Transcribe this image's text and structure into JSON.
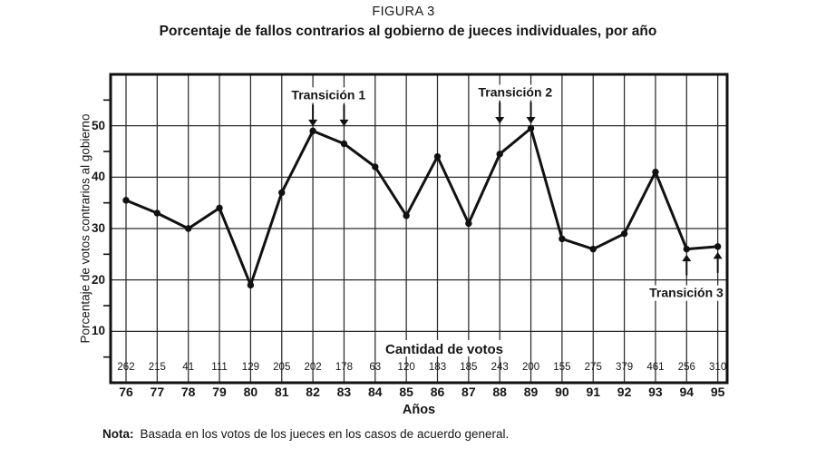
{
  "chart_data": {
    "type": "line",
    "title": "FIGURA 3",
    "subtitle": "Porcentaje de fallos contrarios al gobierno de jueces individuales, por año",
    "ylabel": "Porcentaje de votos contrarios al gobierno",
    "xlabel": "Años",
    "ylim": [
      0,
      60
    ],
    "yticks": [
      10,
      20,
      30,
      40,
      50
    ],
    "minor_yticks": [
      5,
      15,
      25,
      35,
      45,
      55
    ],
    "grid": true,
    "legend_position": "none",
    "categories": [
      "76",
      "77",
      "78",
      "79",
      "80",
      "81",
      "82",
      "83",
      "84",
      "85",
      "86",
      "87",
      "88",
      "89",
      "90",
      "91",
      "92",
      "93",
      "94",
      "95"
    ],
    "series": [
      {
        "name": "Porcentaje de votos contrarios al gobierno",
        "values": [
          35.5,
          33,
          30,
          34,
          19,
          37,
          49,
          46.5,
          42,
          32.5,
          44,
          31,
          44.5,
          49.5,
          28,
          26,
          29,
          41,
          26,
          26.5
        ]
      }
    ],
    "vote_counts": [
      262,
      215,
      41,
      111,
      129,
      205,
      202,
      178,
      63,
      120,
      183,
      185,
      243,
      200,
      155,
      275,
      379,
      461,
      256,
      310
    ],
    "counts_label": "Cantidad de votos",
    "annotations": [
      {
        "label": "Transición 1",
        "targets": [
          "82",
          "83"
        ],
        "direction": "down"
      },
      {
        "label": "Transición 2",
        "targets": [
          "88",
          "89"
        ],
        "direction": "down"
      },
      {
        "label": "Transición 3",
        "targets": [
          "94",
          "95"
        ],
        "direction": "up"
      }
    ],
    "note": {
      "label": "Nota:",
      "text": "Basada en los votos de los jueces en los casos de acuerdo general."
    },
    "colors": {
      "line": "#111111",
      "grid": "#2a2a2a",
      "text": "#161616",
      "background": "#ffffff"
    }
  }
}
